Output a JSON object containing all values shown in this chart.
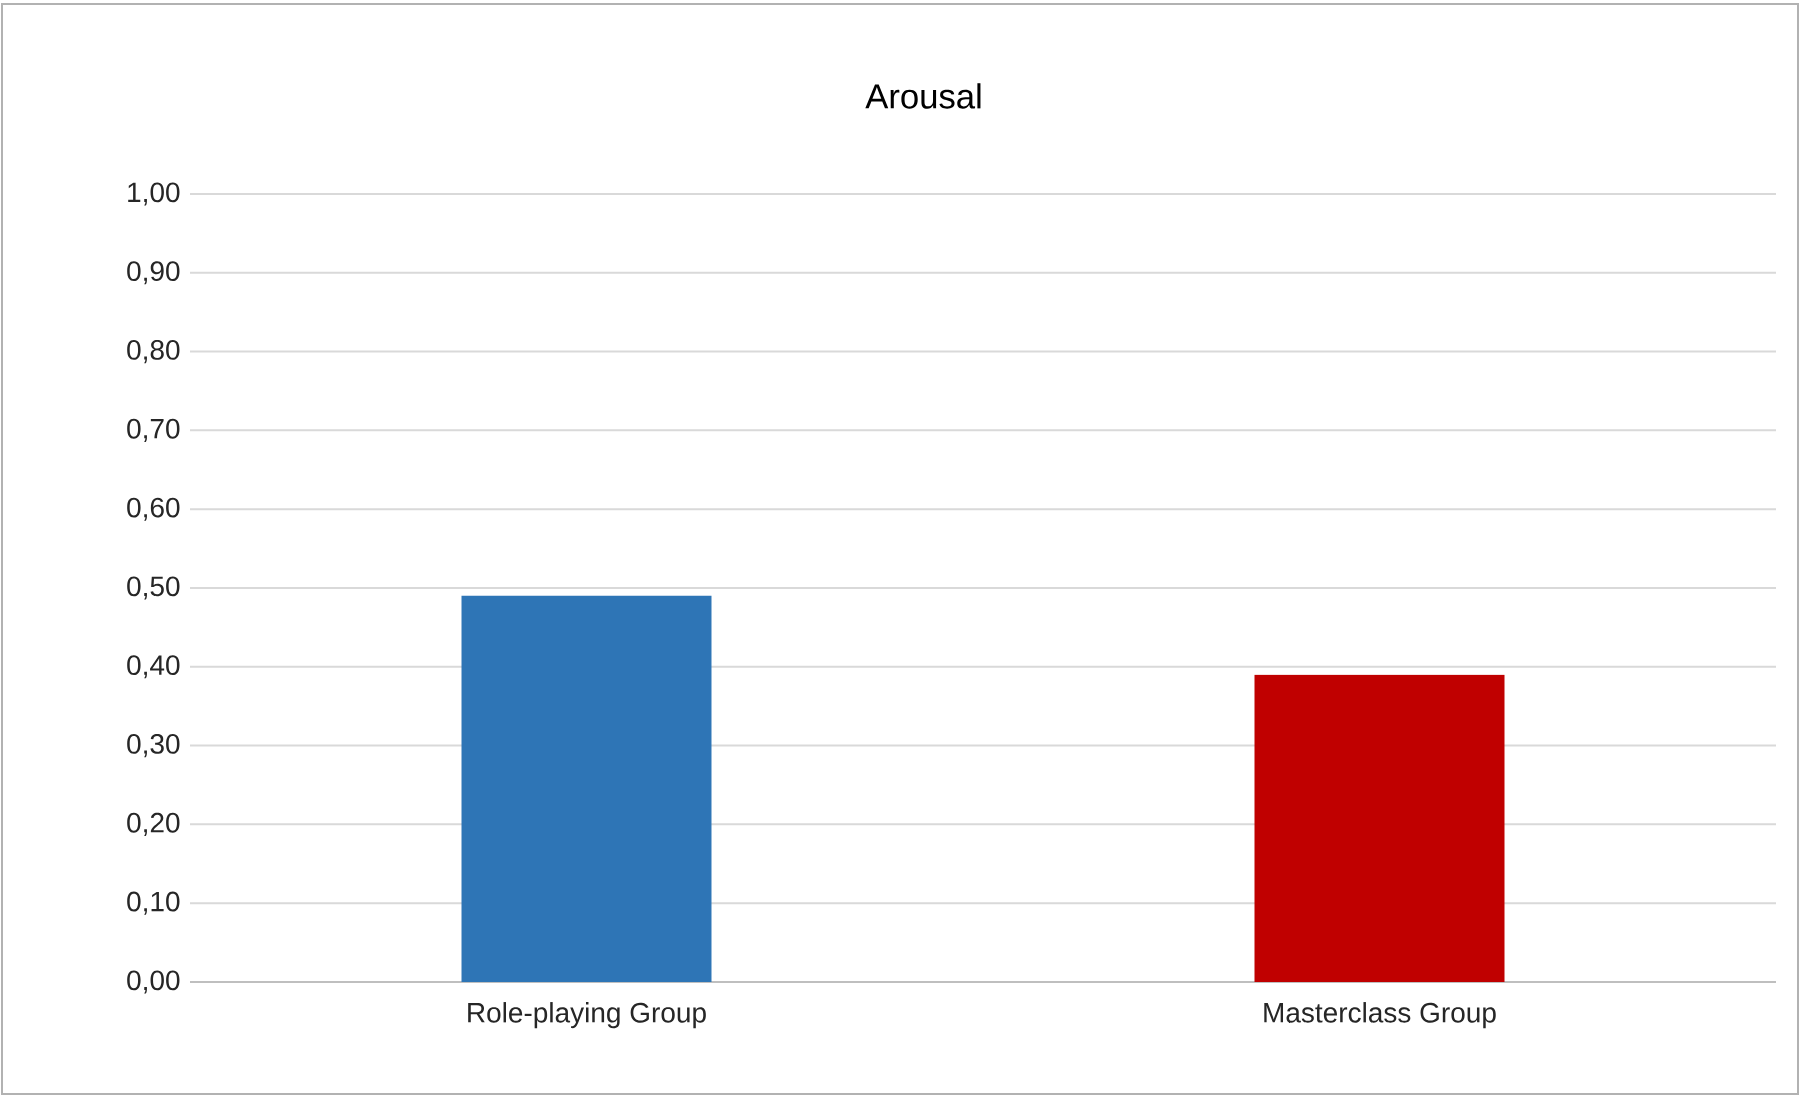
{
  "chart_data": {
    "type": "bar",
    "title": "Arousal",
    "categories": [
      "Role-playing Group",
      "Masterclass Group"
    ],
    "values": [
      0.49,
      0.39
    ],
    "colors": [
      "#2e75b6",
      "#c00000"
    ],
    "ylim": [
      0,
      1
    ],
    "yticks": [
      {
        "value": 0,
        "label": "0,00"
      },
      {
        "value": 0.1,
        "label": "0,10"
      },
      {
        "value": 0.2,
        "label": "0,20"
      },
      {
        "value": 0.3,
        "label": "0,30"
      },
      {
        "value": 0.4,
        "label": "0,40"
      },
      {
        "value": 0.5,
        "label": "0,50"
      },
      {
        "value": 0.6,
        "label": "0,60"
      },
      {
        "value": 0.7,
        "label": "0,70"
      },
      {
        "value": 0.8,
        "label": "0,80"
      },
      {
        "value": 0.9,
        "label": "0,90"
      },
      {
        "value": 1,
        "label": "1,00"
      }
    ],
    "grid": "y"
  }
}
